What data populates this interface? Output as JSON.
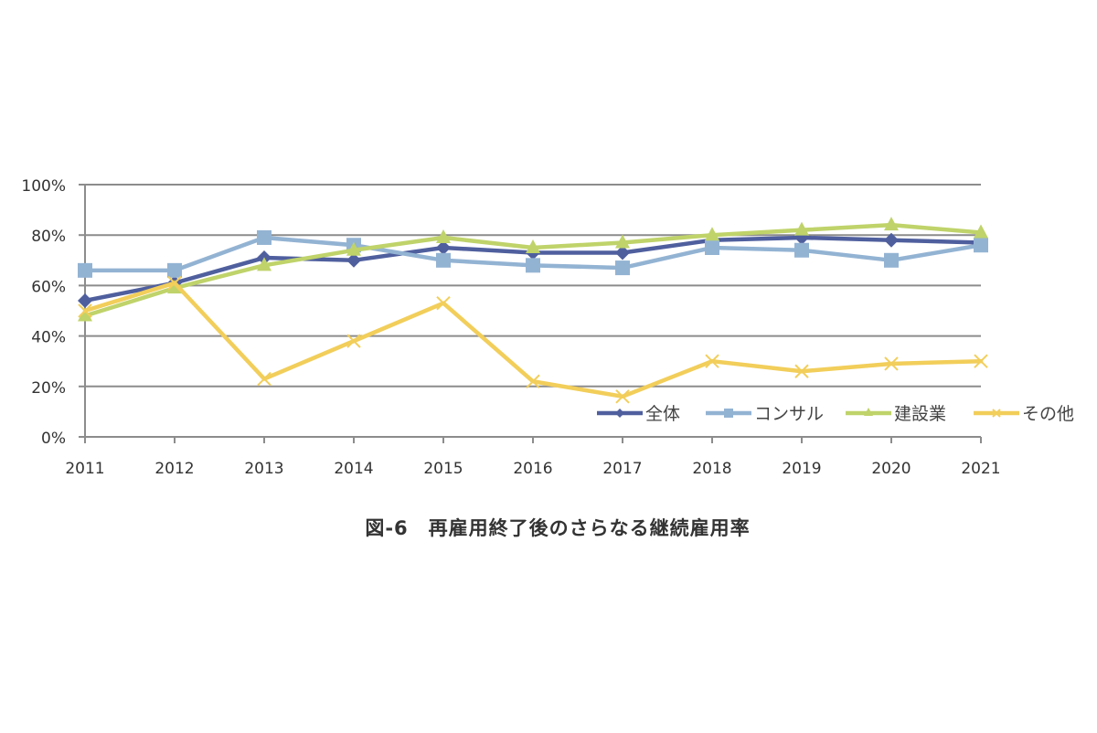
{
  "chart_data": {
    "type": "line",
    "title": "図-6　再雇用終了後のさらなる継続雇用率",
    "xlabel": "",
    "ylabel": "",
    "x": [
      "2011",
      "2012",
      "2013",
      "2014",
      "2015",
      "2016",
      "2017",
      "2018",
      "2019",
      "2020",
      "2021"
    ],
    "yticks": [
      "0%",
      "20%",
      "40%",
      "60%",
      "80%",
      "100%"
    ],
    "ylim": [
      0,
      100
    ],
    "grid": true,
    "legend_position": "inside-bottom-right",
    "series": [
      {
        "name": "全体",
        "color": "#4F5F9E",
        "marker": "diamond",
        "values": [
          54,
          61,
          71,
          70,
          75,
          73,
          73,
          78,
          79,
          78,
          77
        ]
      },
      {
        "name": "コンサル",
        "color": "#93B3D3",
        "marker": "square",
        "values": [
          66,
          66,
          79,
          76,
          70,
          68,
          67,
          75,
          74,
          70,
          76
        ]
      },
      {
        "name": "建設業",
        "color": "#BFD36A",
        "marker": "triangle",
        "values": [
          48,
          59,
          68,
          74,
          79,
          75,
          77,
          80,
          82,
          84,
          81
        ]
      },
      {
        "name": "その他",
        "color": "#F2CE5A",
        "marker": "x",
        "values": [
          50,
          61,
          23,
          38,
          53,
          22,
          16,
          30,
          26,
          29,
          30
        ]
      }
    ]
  },
  "caption": "図-6　再雇用終了後のさらなる継続雇用率"
}
